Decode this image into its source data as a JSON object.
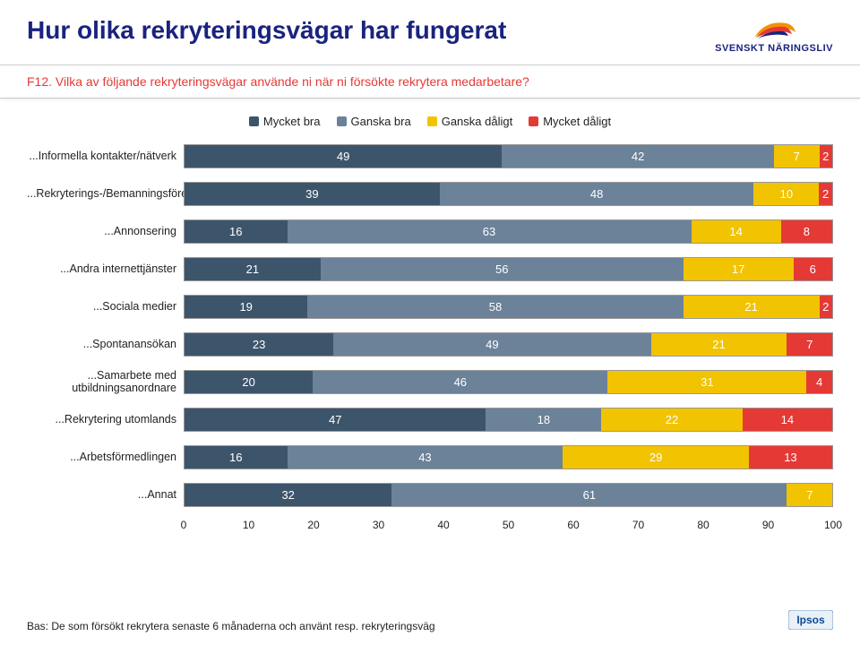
{
  "header": {
    "title": "Hur olika rekryteringsvägar har fungerat",
    "logo_text": "SVENSKT NÄRINGSLIV"
  },
  "subtitle": "F12. Vilka av följande rekryteringsvägar använde ni när ni försökte rekrytera medarbetare?",
  "legend": {
    "items": [
      {
        "label": "Mycket bra",
        "color": "#3d556b"
      },
      {
        "label": "Ganska bra",
        "color": "#6b8299"
      },
      {
        "label": "Ganska dåligt",
        "color": "#f2c300"
      },
      {
        "label": "Mycket dåligt",
        "color": "#e53935"
      }
    ]
  },
  "chart": {
    "type": "stacked-horizontal-bar",
    "colors": [
      "#3d556b",
      "#6b8299",
      "#f2c300",
      "#e53935"
    ],
    "background_color": "#ffffff",
    "xlim": [
      0,
      100
    ],
    "xtick_step": 10,
    "xticks": [
      "0",
      "10",
      "20",
      "30",
      "40",
      "50",
      "60",
      "70",
      "80",
      "90",
      "100"
    ],
    "rows": [
      {
        "label": "...Informella kontakter/nätverk",
        "values": [
          49,
          42,
          7,
          2
        ]
      },
      {
        "label": "...Rekryterings-/Bemanningsföretag",
        "values": [
          39,
          48,
          10,
          2
        ]
      },
      {
        "label": "...Annonsering",
        "values": [
          16,
          63,
          14,
          8
        ]
      },
      {
        "label": "...Andra internettjänster",
        "values": [
          21,
          56,
          17,
          6
        ]
      },
      {
        "label": "...Sociala medier",
        "values": [
          19,
          58,
          21,
          2
        ]
      },
      {
        "label": "...Spontanansökan",
        "values": [
          23,
          49,
          21,
          7
        ]
      },
      {
        "label": "...Samarbete med utbildningsanordnare",
        "values": [
          20,
          46,
          31,
          4
        ]
      },
      {
        "label": "...Rekrytering utomlands",
        "values": [
          47,
          18,
          22,
          14
        ]
      },
      {
        "label": "...Arbetsförmedlingen",
        "values": [
          16,
          43,
          29,
          13
        ]
      },
      {
        "label": "...Annat",
        "values": [
          32,
          61,
          7,
          0
        ]
      }
    ]
  },
  "footer": {
    "note": "Bas: De som försökt rekrytera senaste 6 månaderna och använt resp. rekryteringsväg",
    "brand": "Ipsos"
  }
}
